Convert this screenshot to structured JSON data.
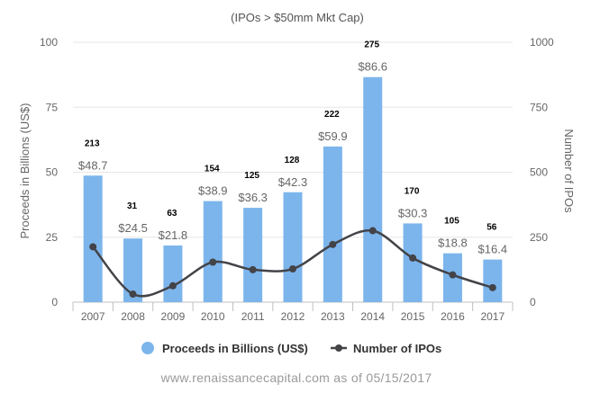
{
  "chart_data": {
    "type": "bar",
    "subtitle": "(IPOs > $50mm Mkt Cap)",
    "categories": [
      "2007",
      "2008",
      "2009",
      "2010",
      "2011",
      "2012",
      "2013",
      "2014",
      "2015",
      "2016",
      "2017"
    ],
    "series": [
      {
        "name": "Proceeds in Billions (US$)",
        "type": "bar",
        "axis": "left",
        "values": [
          48.7,
          24.5,
          21.8,
          38.9,
          36.3,
          42.3,
          59.9,
          86.6,
          30.3,
          18.8,
          16.4
        ],
        "labels": [
          "$48.7",
          "$24.5",
          "$21.8",
          "$38.9",
          "$36.3",
          "$42.3",
          "$59.9",
          "$86.6",
          "$30.3",
          "$18.8",
          "$16.4"
        ],
        "color": "#7cb5ec"
      },
      {
        "name": "Number of IPOs",
        "type": "line",
        "axis": "right",
        "values": [
          213,
          31,
          63,
          154,
          125,
          128,
          222,
          275,
          170,
          105,
          56
        ],
        "labels": [
          "213",
          "31",
          "63",
          "154",
          "125",
          "128",
          "222",
          "275",
          "170",
          "105",
          "56"
        ],
        "color": "#434348"
      }
    ],
    "y_left": {
      "label": "Proceeds in Billions (US$)",
      "range": [
        0,
        100
      ],
      "ticks": [
        "0",
        "25",
        "50",
        "75",
        "100"
      ]
    },
    "y_right": {
      "label": "Number of IPOs",
      "range": [
        0,
        1000
      ],
      "ticks": [
        "0",
        "250",
        "500",
        "750",
        "1000"
      ]
    },
    "grid": true,
    "legend": "bottom-center"
  },
  "footer": "www.renaissancecapital.com as of 05/15/2017"
}
